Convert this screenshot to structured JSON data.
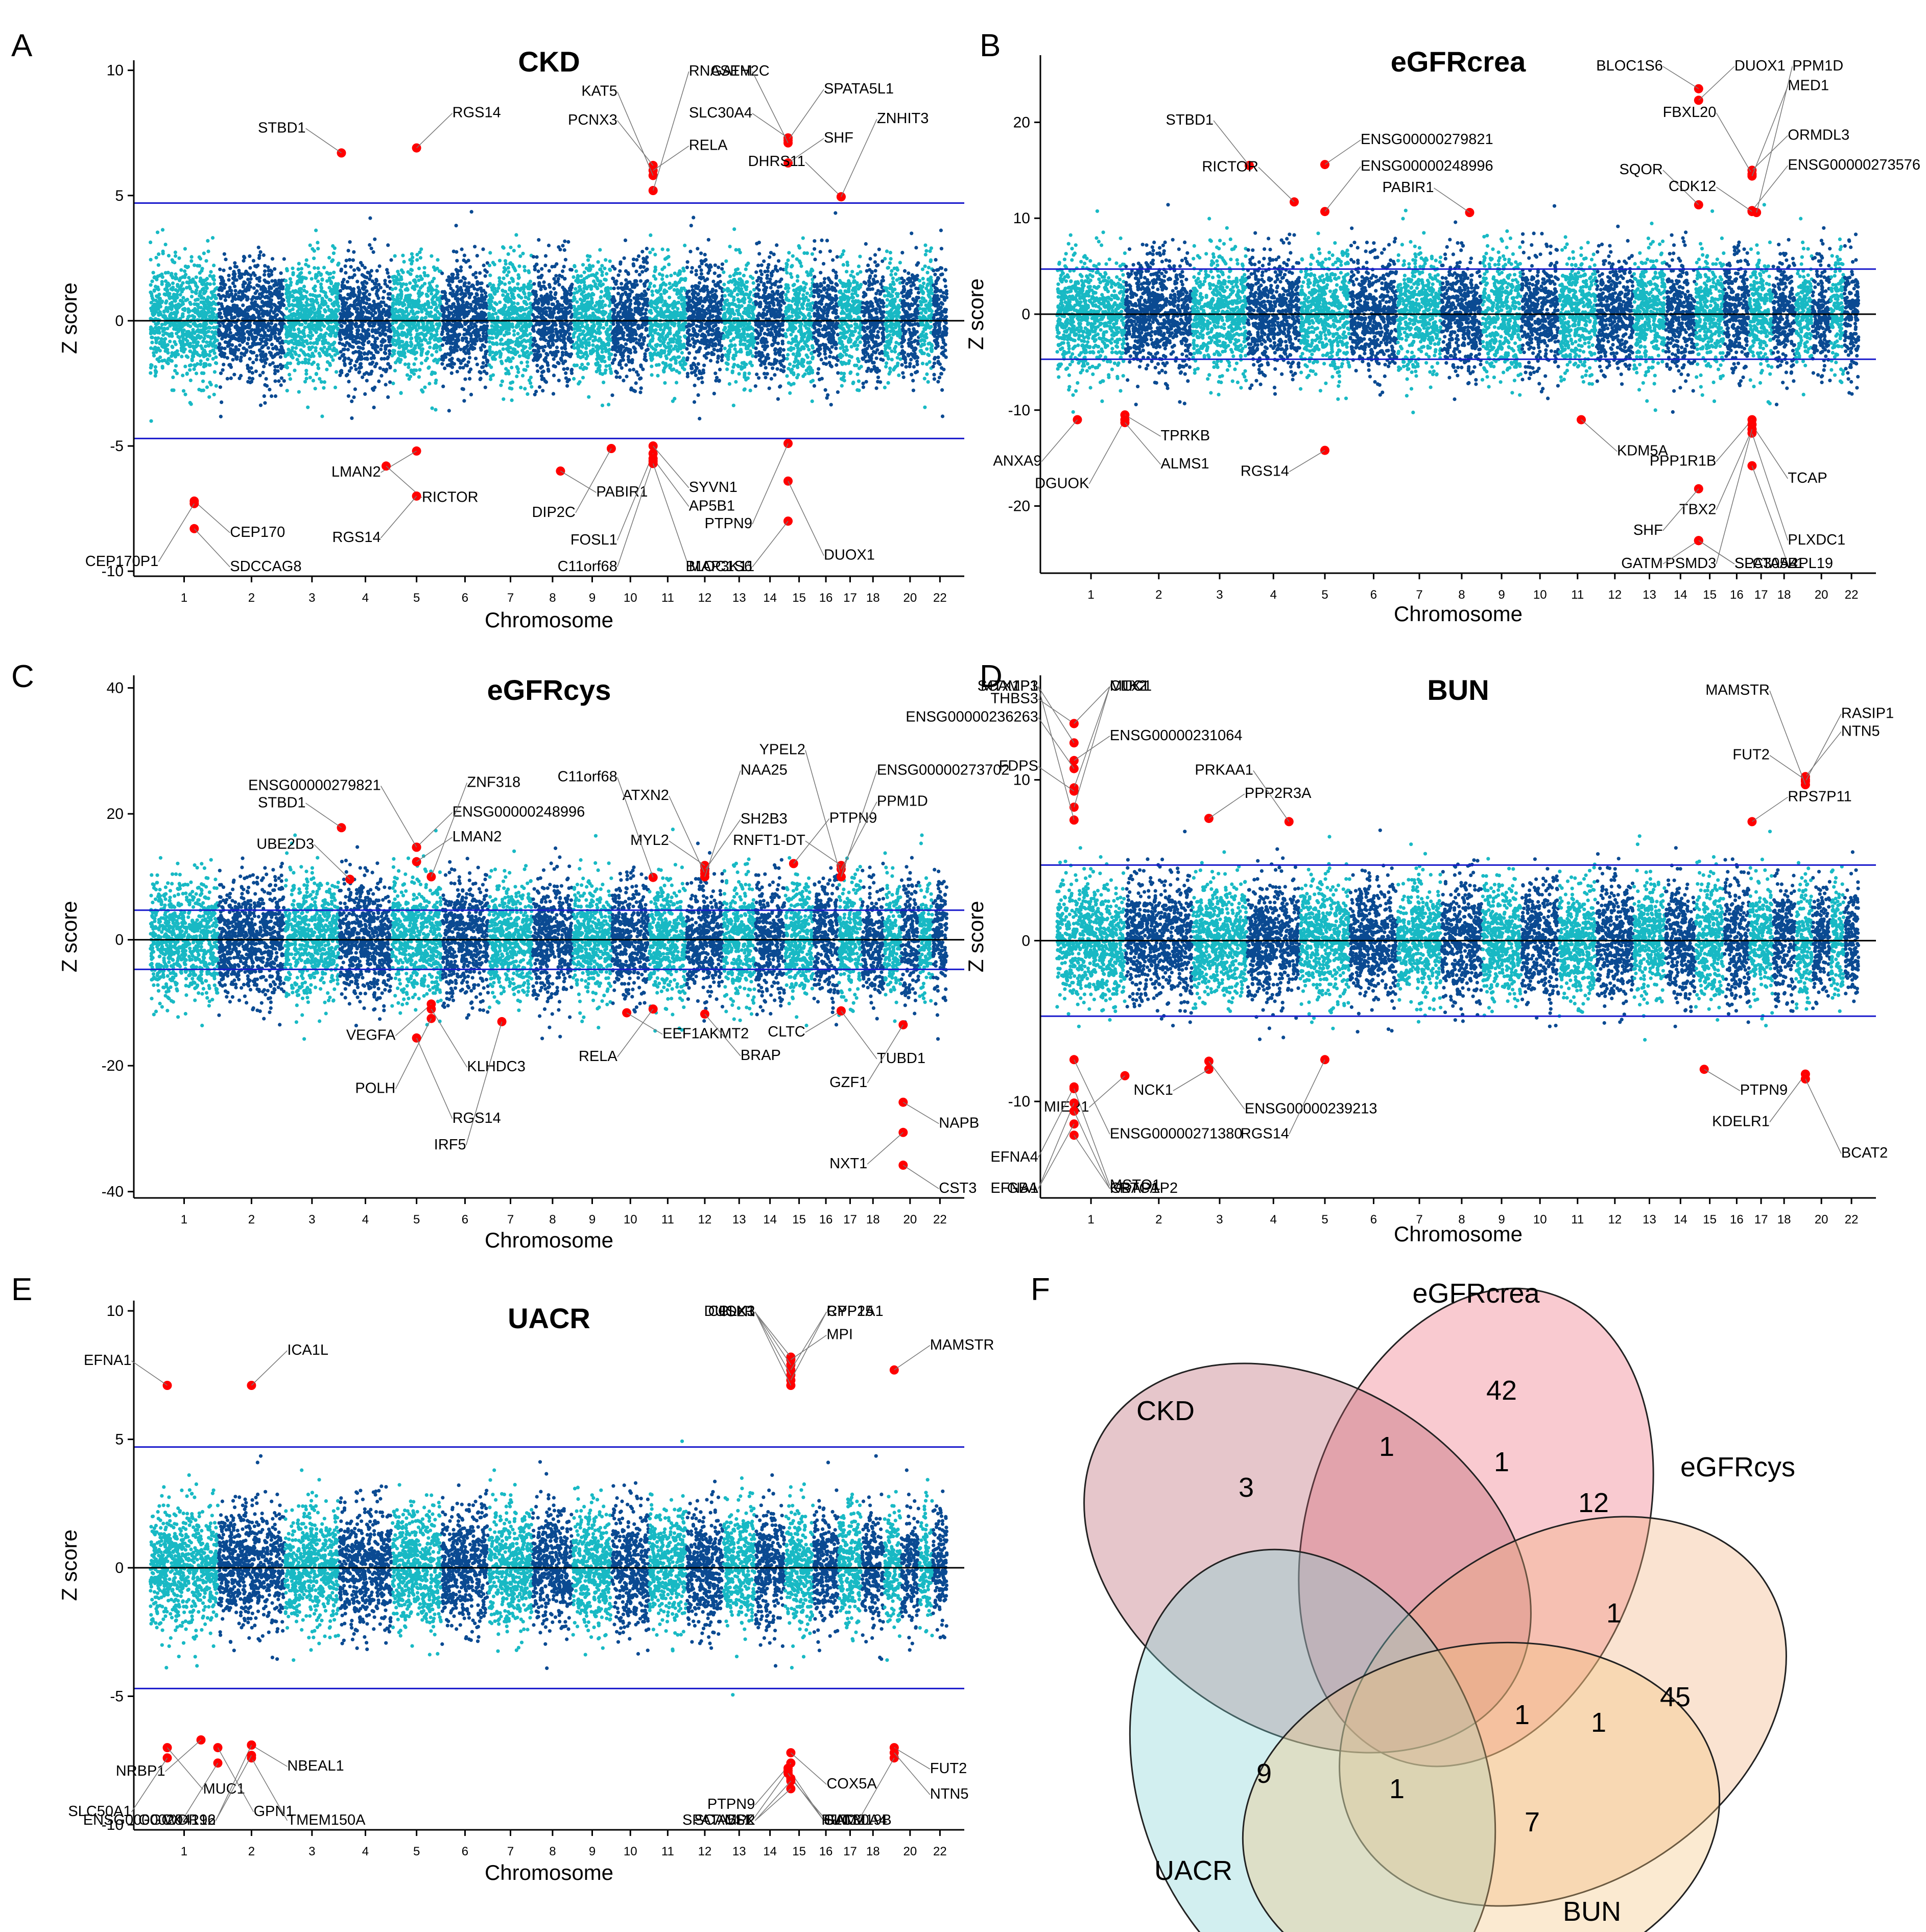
{
  "colors": {
    "light": "#18b9c4",
    "dark": "#0a4a92",
    "hit": "#ff0000",
    "threshold": "#1a1acc",
    "zero": "#000000"
  },
  "chart_data": [
    {
      "id": "A",
      "type": "scatter",
      "subtype": "manhattan",
      "title": "CKD",
      "xlabel": "Chromosome",
      "ylabel": "Z score",
      "ylim": [
        -10.2,
        10.4
      ],
      "yticks": [
        10,
        5,
        0,
        -5,
        -10
      ],
      "threshold": 4.7,
      "chromosomes": [
        "1",
        "2",
        "3",
        "4",
        "5",
        "6",
        "7",
        "8",
        "9",
        "10",
        "11",
        "12",
        "13",
        "14",
        "15",
        "16",
        "17",
        "18",
        "20",
        "22"
      ],
      "genes": [
        {
          "label": "STBD1",
          "x": 3.95,
          "z": 6.7
        },
        {
          "label": "RGS14",
          "x": 5.4,
          "z": 6.9
        },
        {
          "label": "PCNX3",
          "x": 11,
          "z": 6.2
        },
        {
          "label": "RELA",
          "x": 11,
          "z": 6.0
        },
        {
          "label": "KAT5",
          "x": 11,
          "z": 5.8
        },
        {
          "label": "RNASEH2C",
          "x": 11,
          "z": 5.2
        },
        {
          "label": "SLC30A4",
          "x": 15,
          "z": 7.3
        },
        {
          "label": "SPATA5L1",
          "x": 15,
          "z": 7.2
        },
        {
          "label": "GATM",
          "x": 15,
          "z": 7.1
        },
        {
          "label": "SHF",
          "x": 15,
          "z": 6.3
        },
        {
          "label": "DHRS11",
          "x": 17,
          "z": 4.95
        },
        {
          "label": "ZNHIT3",
          "x": 17,
          "z": 4.95
        },
        {
          "label": "LMAN2",
          "x": 5.4,
          "z": -5.2
        },
        {
          "label": "RICTOR",
          "x": 4.8,
          "z": -5.8
        },
        {
          "label": "RGS14",
          "x": 5.4,
          "z": -7.0
        },
        {
          "label": "PABIR1",
          "x": 8.6,
          "z": -6.0
        },
        {
          "label": "DIP2C",
          "x": 9.9,
          "z": -5.1
        },
        {
          "label": "SYVN1",
          "x": 11,
          "z": -5.0
        },
        {
          "label": "FOSL1",
          "x": 11,
          "z": -5.3
        },
        {
          "label": "AP5B1",
          "x": 11,
          "z": -5.5
        },
        {
          "label": "C11orf68",
          "x": 11,
          "z": -5.6
        },
        {
          "label": "MAP3K11",
          "x": 11,
          "z": -5.7
        },
        {
          "label": "PTPN9",
          "x": 15,
          "z": -4.9
        },
        {
          "label": "DUOX1",
          "x": 15,
          "z": -6.4
        },
        {
          "label": "BLOC1S6",
          "x": 15,
          "z": -8.0
        },
        {
          "label": "CEP170",
          "x": 1.55,
          "z": -7.2
        },
        {
          "label": "CEP170P1",
          "x": 1.55,
          "z": -7.3
        },
        {
          "label": "SDCCAG8",
          "x": 1.55,
          "z": -8.3
        }
      ]
    },
    {
      "id": "B",
      "type": "scatter",
      "subtype": "manhattan",
      "title": "eGFRcrea",
      "xlabel": "Chromosome",
      "ylabel": "Z score",
      "ylim": [
        -27,
        27
      ],
      "yticks": [
        20,
        10,
        0,
        -10,
        -20
      ],
      "threshold": 4.7,
      "chromosomes": [
        "1",
        "2",
        "3",
        "4",
        "5",
        "6",
        "7",
        "8",
        "9",
        "10",
        "11",
        "12",
        "13",
        "14",
        "15",
        "16",
        "17",
        "18",
        "20",
        "22"
      ],
      "genes": [
        {
          "label": "BLOC1S6",
          "x": 15,
          "z": 23.5
        },
        {
          "label": "DUOX1",
          "x": 15,
          "z": 22.3
        },
        {
          "label": "STBD1",
          "x": 3.95,
          "z": 15.5
        },
        {
          "label": "ENSG00000279821",
          "x": 5.4,
          "z": 15.6
        },
        {
          "label": "RICTOR",
          "x": 4.8,
          "z": 11.7
        },
        {
          "label": "ENSG00000248996",
          "x": 5.4,
          "z": 10.7
        },
        {
          "label": "PABIR1",
          "x": 8.6,
          "z": 10.6
        },
        {
          "label": "ORMDL3",
          "x": 17,
          "z": 15.0
        },
        {
          "label": "FBXL20",
          "x": 17,
          "z": 14.6
        },
        {
          "label": "MED1",
          "x": 17,
          "z": 14.4
        },
        {
          "label": "SQOR",
          "x": 15,
          "z": 11.4
        },
        {
          "label": "ENSG00000273576",
          "x": 17,
          "z": 10.8
        },
        {
          "label": "CDK12",
          "x": 17,
          "z": 10.7
        },
        {
          "label": "PPM1D",
          "x": 17.2,
          "z": 10.6
        },
        {
          "label": "ANXA9",
          "x": 1.2,
          "z": -11.0
        },
        {
          "label": "TPRKB",
          "x": 1.9,
          "z": -10.5
        },
        {
          "label": "DGUOK",
          "x": 1.9,
          "z": -11.0
        },
        {
          "label": "ALMS1",
          "x": 1.9,
          "z": -11.3
        },
        {
          "label": "RGS14",
          "x": 5.4,
          "z": -14.2
        },
        {
          "label": "KDM5A",
          "x": 11.5,
          "z": -11.0
        },
        {
          "label": "PPP1R1B",
          "x": 17,
          "z": -11.0
        },
        {
          "label": "TCAP",
          "x": 17,
          "z": -11.5
        },
        {
          "label": "TBX2",
          "x": 17,
          "z": -12.0
        },
        {
          "label": "PLXDC1",
          "x": 17,
          "z": -12.4
        },
        {
          "label": "PSMD3",
          "x": 17,
          "z": -12.0
        },
        {
          "label": "RPL19",
          "x": 17,
          "z": -15.8
        },
        {
          "label": "SHF",
          "x": 15,
          "z": -18.2
        },
        {
          "label": "SLC30A4",
          "x": 15,
          "z": -23.6
        },
        {
          "label": "GATM",
          "x": 15,
          "z": -23.6
        },
        {
          "label": "SPATA5L1",
          "x": 15,
          "z": -23.6
        }
      ]
    },
    {
      "id": "C",
      "type": "scatter",
      "subtype": "manhattan",
      "title": "eGFRcys",
      "xlabel": "Chromosome",
      "ylabel": "Z score",
      "ylim": [
        -41,
        42
      ],
      "yticks": [
        40,
        20,
        0,
        -20,
        -40
      ],
      "threshold": 4.7,
      "chromosomes": [
        "1",
        "2",
        "3",
        "4",
        "5",
        "6",
        "7",
        "8",
        "9",
        "10",
        "11",
        "12",
        "13",
        "14",
        "15",
        "16",
        "17",
        "18",
        "20",
        "22"
      ],
      "genes": [
        {
          "label": "STBD1",
          "x": 3.95,
          "z": 17.8
        },
        {
          "label": "ENSG00000248996",
          "x": 5.4,
          "z": 14.7
        },
        {
          "label": "ENSG00000279821",
          "x": 5.4,
          "z": 14.7
        },
        {
          "label": "LMAN2",
          "x": 5.4,
          "z": 12.4
        },
        {
          "label": "UBE2D3",
          "x": 4.1,
          "z": 9.6
        },
        {
          "label": "ZNF318",
          "x": 5.7,
          "z": 10.0
        },
        {
          "label": "MYL2",
          "x": 12.4,
          "z": 11.8
        },
        {
          "label": "SH2B3",
          "x": 12.4,
          "z": 11.0
        },
        {
          "label": "ATXN2",
          "x": 12.4,
          "z": 10.5
        },
        {
          "label": "NAA25",
          "x": 12.4,
          "z": 10.0
        },
        {
          "label": "C11orf68",
          "x": 11,
          "z": 9.9
        },
        {
          "label": "PTPN9",
          "x": 15.2,
          "z": 12.1
        },
        {
          "label": "RNFT1-DT",
          "x": 17,
          "z": 11.8
        },
        {
          "label": "PPM1D",
          "x": 17,
          "z": 11.2
        },
        {
          "label": "YPEL2",
          "x": 17,
          "z": 10.0
        },
        {
          "label": "ENSG00000273702",
          "x": 17,
          "z": 10.0
        },
        {
          "label": "VEGFA",
          "x": 5.7,
          "z": -10.2
        },
        {
          "label": "KLHDC3",
          "x": 5.7,
          "z": -11.0
        },
        {
          "label": "POLH",
          "x": 5.7,
          "z": -12.5
        },
        {
          "label": "RGS14",
          "x": 5.4,
          "z": -15.6
        },
        {
          "label": "IRF5",
          "x": 7.2,
          "z": -13.0
        },
        {
          "label": "EEF1AKMT2",
          "x": 10.3,
          "z": -11.6
        },
        {
          "label": "RELA",
          "x": 11,
          "z": -11.0
        },
        {
          "label": "BRAP",
          "x": 12.4,
          "z": -11.8
        },
        {
          "label": "CLTC",
          "x": 17,
          "z": -11.3
        },
        {
          "label": "TUBD1",
          "x": 17,
          "z": -11.3
        },
        {
          "label": "GZF1",
          "x": 20,
          "z": -13.5
        },
        {
          "label": "NAPB",
          "x": 20,
          "z": -25.8
        },
        {
          "label": "NXT1",
          "x": 20,
          "z": -30.6
        },
        {
          "label": "CST3",
          "x": 20,
          "z": -35.8
        }
      ]
    },
    {
      "id": "D",
      "type": "scatter",
      "subtype": "manhattan",
      "title": "BUN",
      "xlabel": "Chromosome",
      "ylabel": "Z score",
      "ylim": [
        -16,
        16.5
      ],
      "yticks": [
        10,
        0,
        -10
      ],
      "threshold": 4.7,
      "chromosomes": [
        "1",
        "2",
        "3",
        "4",
        "5",
        "6",
        "7",
        "8",
        "9",
        "10",
        "11",
        "12",
        "13",
        "14",
        "15",
        "16",
        "17",
        "18",
        "20",
        "22"
      ],
      "genes": [
        {
          "label": "THBS3",
          "x": 1.15,
          "z": 13.5
        },
        {
          "label": "MUC1",
          "x": 1.15,
          "z": 13.5
        },
        {
          "label": "MTX1P1",
          "x": 1.15,
          "z": 12.3
        },
        {
          "label": "ENSG00000231064",
          "x": 1.15,
          "z": 11.2
        },
        {
          "label": "ENSG00000236263",
          "x": 1.15,
          "z": 10.7
        },
        {
          "label": "MTX1",
          "x": 1.15,
          "z": 9.5
        },
        {
          "label": "FDPS",
          "x": 1.15,
          "z": 9.3
        },
        {
          "label": "CLK2",
          "x": 1.15,
          "z": 8.3
        },
        {
          "label": "SCAMP3",
          "x": 1.15,
          "z": 7.5
        },
        {
          "label": "PPP2R3A",
          "x": 3.2,
          "z": 7.6
        },
        {
          "label": "PRKAA1",
          "x": 4.7,
          "z": 7.4
        },
        {
          "label": "NTN5",
          "x": 19.5,
          "z": 10.2
        },
        {
          "label": "FUT2",
          "x": 19.5,
          "z": 10.0
        },
        {
          "label": "RASIP1",
          "x": 19.5,
          "z": 9.9
        },
        {
          "label": "MAMSTR",
          "x": 19.5,
          "z": 9.7
        },
        {
          "label": "RPS7P11",
          "x": 17,
          "z": 7.4
        },
        {
          "label": "MIER1",
          "x": 0.9,
          "z": -8.4
        },
        {
          "label": "ENSG00000271380",
          "x": 1.15,
          "z": -7.4
        },
        {
          "label": "EFNA4",
          "x": 1.15,
          "z": -9.1
        },
        {
          "label": "MSTO1",
          "x": 1.15,
          "z": -9.2
        },
        {
          "label": "GBA",
          "x": 1.15,
          "z": -10.1
        },
        {
          "label": "KRTCAP2",
          "x": 1.15,
          "z": -10.6
        },
        {
          "label": "EFNA1",
          "x": 1.15,
          "z": -11.4
        },
        {
          "label": "GBAP1",
          "x": 1.15,
          "z": -12.1
        },
        {
          "label": "NCK1",
          "x": 3.2,
          "z": -8.0
        },
        {
          "label": "ENSG00000239213",
          "x": 3.2,
          "z": -7.5
        },
        {
          "label": "RGS14",
          "x": 5.4,
          "z": -7.4
        },
        {
          "label": "PTPN9",
          "x": 15.2,
          "z": -8.0
        },
        {
          "label": "KDELR1",
          "x": 19.5,
          "z": -8.3
        },
        {
          "label": "BCAT2",
          "x": 19.5,
          "z": -8.6
        }
      ]
    },
    {
      "id": "E",
      "type": "scatter",
      "subtype": "manhattan",
      "title": "UACR",
      "xlabel": "Chromosome",
      "ylabel": "Z score",
      "ylim": [
        -10.2,
        10.4
      ],
      "yticks": [
        10,
        5,
        0,
        -5,
        -10
      ],
      "threshold": 4.7,
      "chromosomes": [
        "1",
        "2",
        "3",
        "4",
        "5",
        "6",
        "7",
        "8",
        "9",
        "10",
        "11",
        "12",
        "13",
        "14",
        "15",
        "16",
        "17",
        "18",
        "20",
        "22"
      ],
      "genes": [
        {
          "label": "EFNA1",
          "x": 1.15,
          "z": 7.1
        },
        {
          "label": "ICA1L",
          "x": 2.4,
          "z": 7.1
        },
        {
          "label": "ISLR",
          "x": 15.1,
          "z": 8.2
        },
        {
          "label": "MPI",
          "x": 15.1,
          "z": 8.1
        },
        {
          "label": "CLK3",
          "x": 15.1,
          "z": 7.9
        },
        {
          "label": "CYP1A1",
          "x": 15.1,
          "z": 7.7
        },
        {
          "label": "DUOX1",
          "x": 15.1,
          "z": 7.5
        },
        {
          "label": "RPP25",
          "x": 15.1,
          "z": 7.3
        },
        {
          "label": "CPLX3",
          "x": 15.1,
          "z": 7.1
        },
        {
          "label": "MAMSTR",
          "x": 19.5,
          "z": 7.7
        },
        {
          "label": "NRBP1",
          "x": 1.65,
          "z": -6.7
        },
        {
          "label": "MUC1",
          "x": 1.15,
          "z": -7.0
        },
        {
          "label": "SLC50A1",
          "x": 1.15,
          "z": -7.4
        },
        {
          "label": "GPN1",
          "x": 1.9,
          "z": -7.0
        },
        {
          "label": "GGCX",
          "x": 1.9,
          "z": -7.6
        },
        {
          "label": "NBEAL1",
          "x": 2.4,
          "z": -6.9
        },
        {
          "label": "WDR12",
          "x": 2.4,
          "z": -6.9
        },
        {
          "label": "TMEM150A",
          "x": 2.4,
          "z": -7.4
        },
        {
          "label": "ENSG00000204196",
          "x": 2.4,
          "z": -7.3
        },
        {
          "label": "COX5A",
          "x": 15.1,
          "z": -7.2
        },
        {
          "label": "PTPN9",
          "x": 15.1,
          "z": -7.6
        },
        {
          "label": "SLC30A4",
          "x": 15,
          "z": -7.8
        },
        {
          "label": "SPATA5L1",
          "x": 15,
          "z": -7.9
        },
        {
          "label": "FAM219B",
          "x": 15.1,
          "z": -8.2
        },
        {
          "label": "SCAMP2",
          "x": 15.1,
          "z": -8.6
        },
        {
          "label": "GATM",
          "x": 15,
          "z": -8.0
        },
        {
          "label": "CSK",
          "x": 15.1,
          "z": -8.3
        },
        {
          "label": "FUT2",
          "x": 19.5,
          "z": -7.0
        },
        {
          "label": "FUT1",
          "x": 19.5,
          "z": -7.4
        },
        {
          "label": "NTN5",
          "x": 19.5,
          "z": -7.2
        }
      ]
    },
    {
      "id": "F",
      "type": "venn",
      "sets": [
        {
          "name": "eGFRcrea",
          "color": "#ee6677"
        },
        {
          "name": "CKD",
          "color": "#b85c6a"
        },
        {
          "name": "eGFRcys",
          "color": "#f0b07a"
        },
        {
          "name": "UACR",
          "color": "#7fd0d4"
        },
        {
          "name": "BUN",
          "color": "#f4c27a"
        }
      ],
      "regions": [
        {
          "sets": "eGFRcrea only",
          "count": "42"
        },
        {
          "sets": "CKD only",
          "count": "3"
        },
        {
          "sets": "eGFRcys only",
          "count": "45"
        },
        {
          "sets": "UACR only",
          "count": "9"
        },
        {
          "sets": "BUN only",
          "count": "7"
        },
        {
          "sets": "CKD∩eGFRcrea",
          "count": "1"
        },
        {
          "sets": "CKD∩eGFRcrea∩eGFRcys",
          "count": "1"
        },
        {
          "sets": "eGFRcrea∩eGFRcys",
          "count": "12"
        },
        {
          "sets": "eGFRcrea∩eGFRcys∩BUN",
          "count": "1"
        },
        {
          "sets": "eGFRcrea∩eGFRcys∩BUN (inner)",
          "count": "1"
        },
        {
          "sets": "eGFRcys∩BUN",
          "count": "1"
        },
        {
          "sets": "UACR∩BUN",
          "count": "1"
        }
      ]
    }
  ]
}
